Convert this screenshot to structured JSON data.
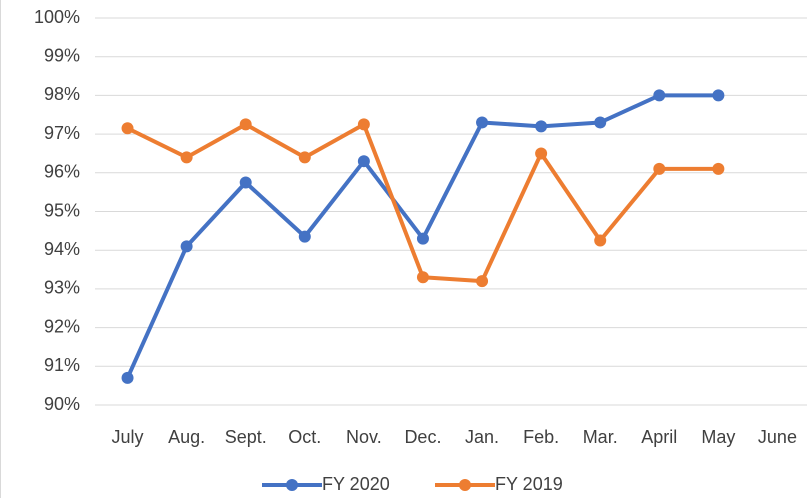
{
  "chart_data": {
    "type": "line",
    "categories": [
      "July",
      "Aug.",
      "Sept.",
      "Oct.",
      "Nov.",
      "Dec.",
      "Jan.",
      "Feb.",
      "Mar.",
      "April",
      "May",
      "June"
    ],
    "series": [
      {
        "name": "FY 2020",
        "color": "#4472c4",
        "values": [
          90.7,
          94.1,
          95.75,
          94.35,
          96.3,
          94.3,
          97.3,
          97.2,
          97.3,
          98.0,
          98.0,
          null
        ]
      },
      {
        "name": "FY 2019",
        "color": "#ed7d31",
        "values": [
          97.15,
          96.4,
          97.25,
          96.4,
          97.25,
          93.3,
          93.2,
          96.5,
          94.25,
          96.1,
          96.1,
          null
        ]
      }
    ],
    "ylim": [
      90,
      100
    ],
    "yticks": [
      {
        "value": 90,
        "label": "90%"
      },
      {
        "value": 91,
        "label": "91%"
      },
      {
        "value": 92,
        "label": "92%"
      },
      {
        "value": 93,
        "label": "93%"
      },
      {
        "value": 94,
        "label": "94%"
      },
      {
        "value": 95,
        "label": "95%"
      },
      {
        "value": 96,
        "label": "96%"
      },
      {
        "value": 97,
        "label": "97%"
      },
      {
        "value": 98,
        "label": "98%"
      },
      {
        "value": 99,
        "label": "99%"
      },
      {
        "value": 100,
        "label": "100%"
      }
    ],
    "grid": true,
    "legend": "bottom"
  }
}
